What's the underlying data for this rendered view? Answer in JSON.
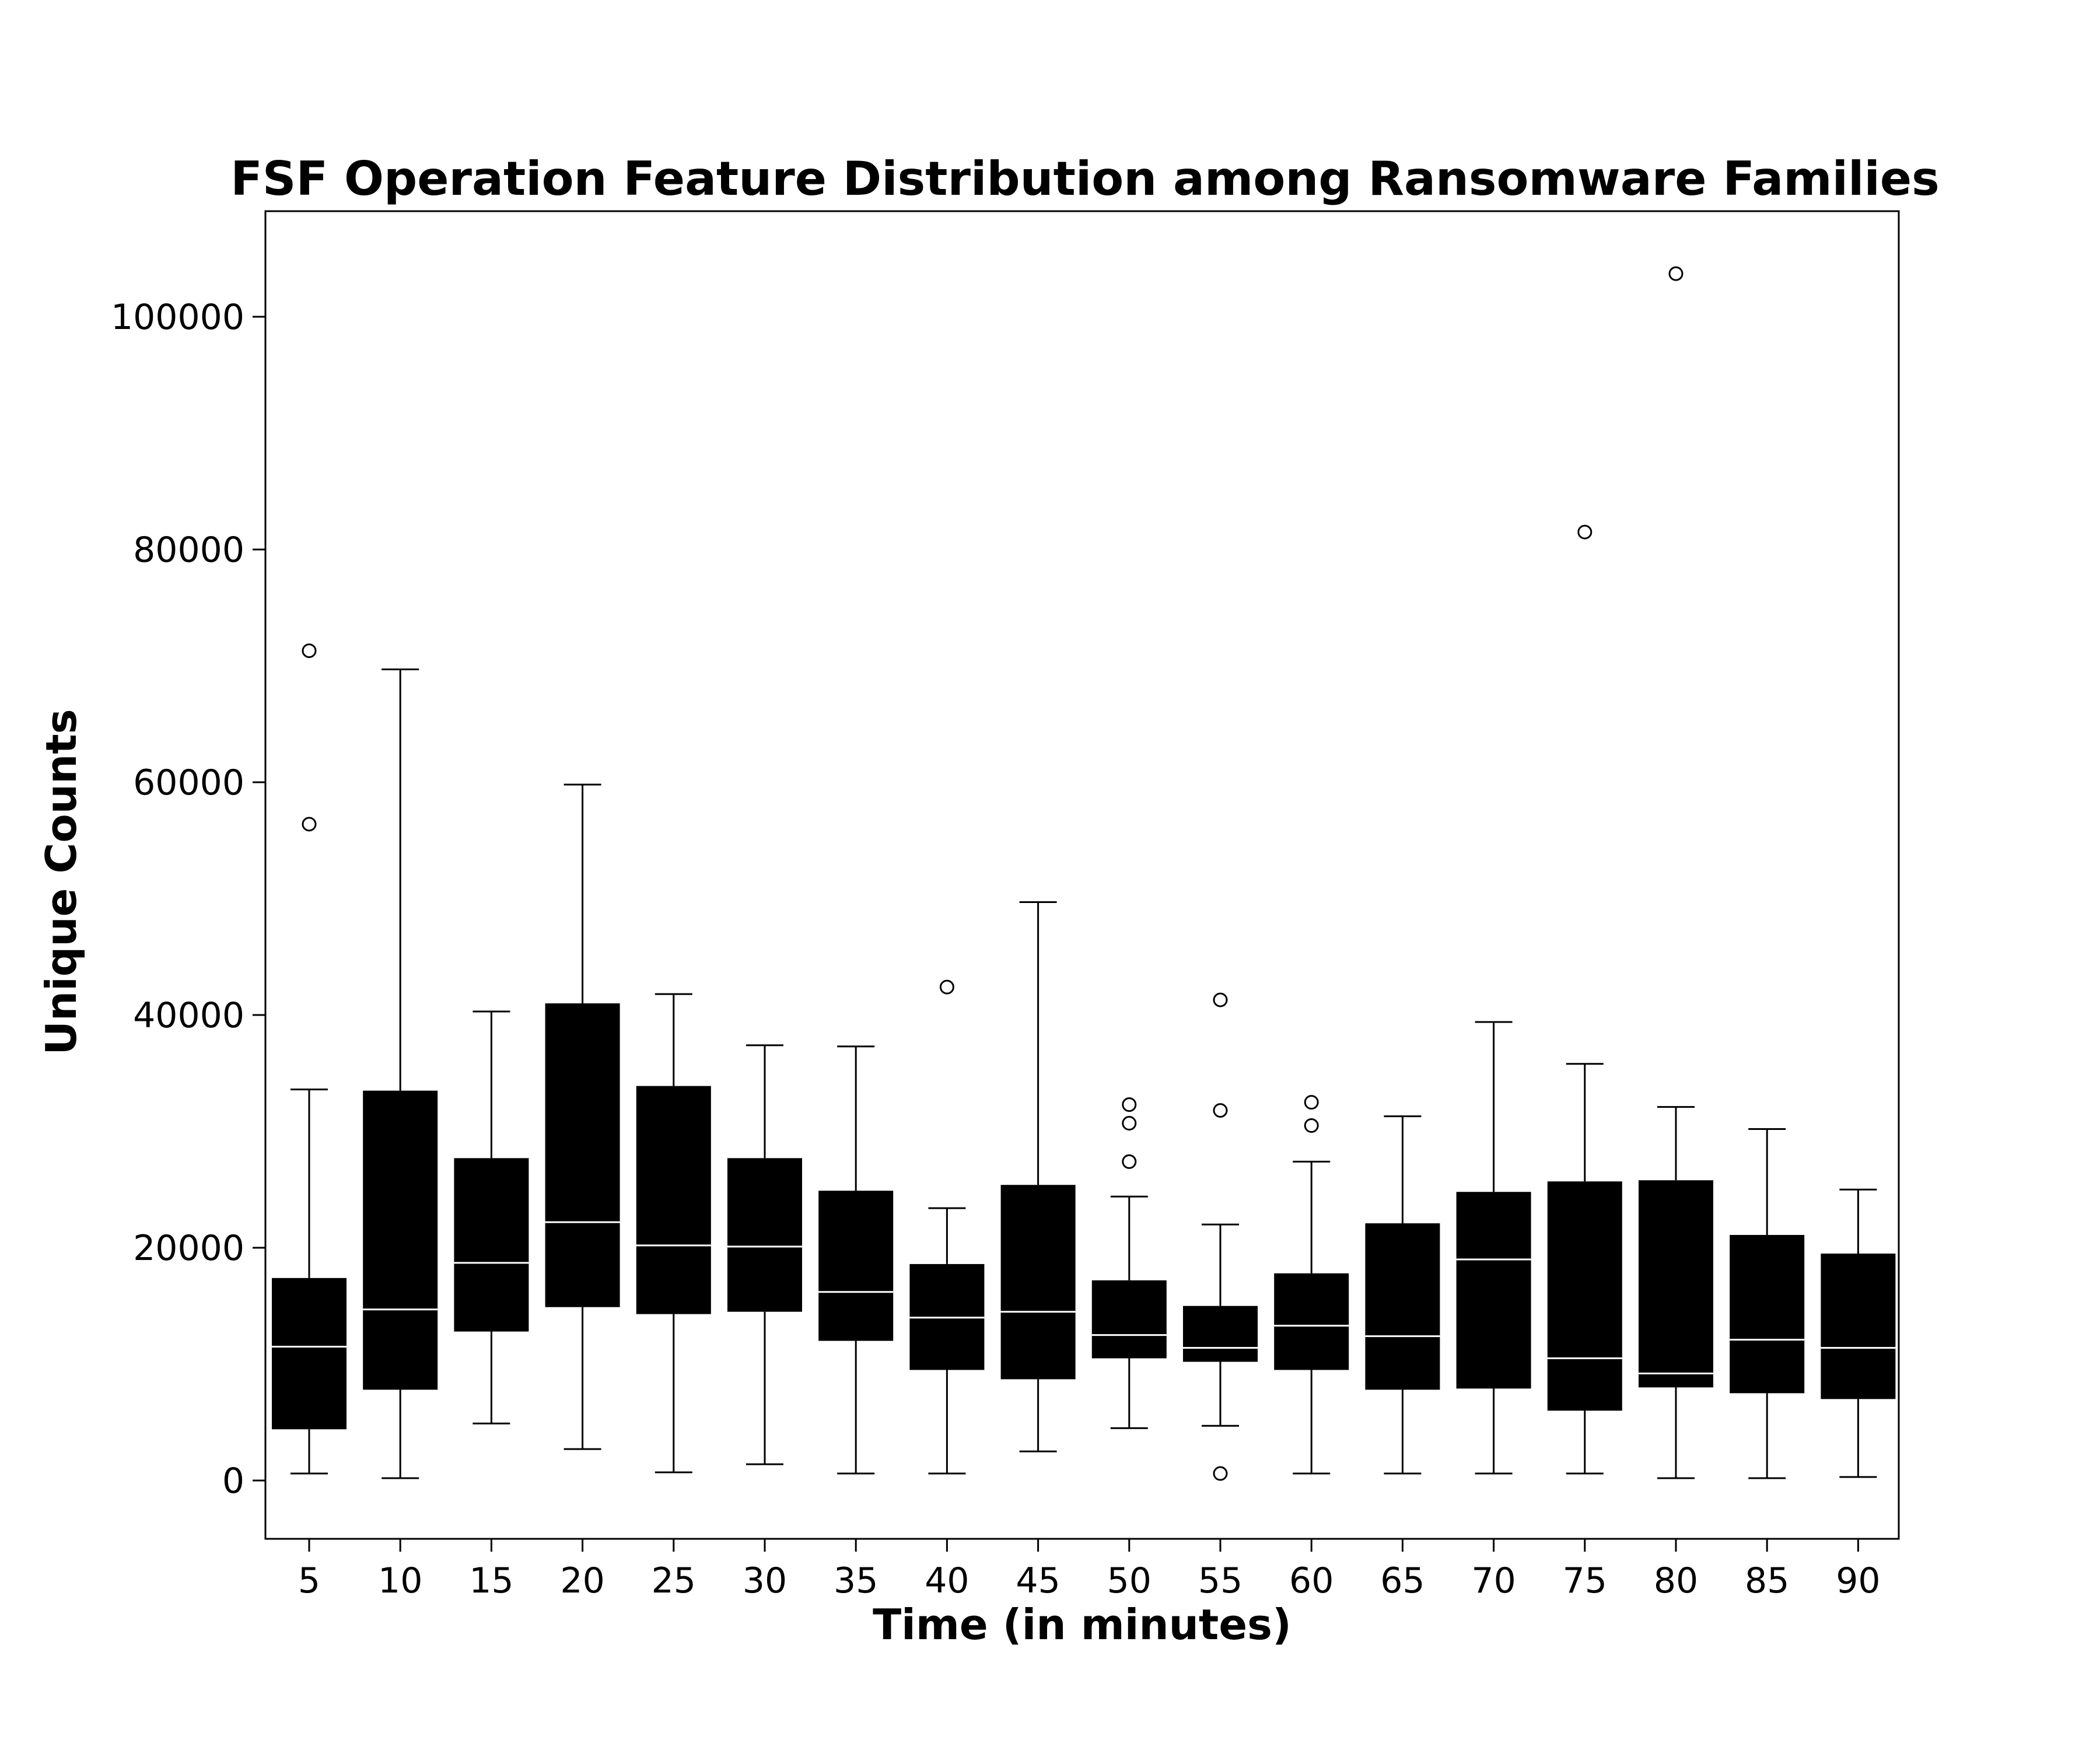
{
  "chart_data": {
    "type": "box",
    "title": "FSF Operation Feature Distribution among Ransomware Families",
    "xlabel": "Time (in minutes)",
    "ylabel": "Unique Counts",
    "ylim": [
      -5000,
      109000
    ],
    "yticks": [
      0,
      20000,
      40000,
      60000,
      80000,
      100000
    ],
    "grid": false,
    "legend": "none",
    "colors": {
      "box_fill": "#000000",
      "median_line": "#ffffff",
      "whisker": "#000000",
      "outlier_edge": "#000000",
      "background": "#ffffff"
    },
    "categories": [
      "5",
      "10",
      "15",
      "20",
      "25",
      "30",
      "35",
      "40",
      "45",
      "50",
      "55",
      "60",
      "65",
      "70",
      "75",
      "80",
      "85",
      "90"
    ],
    "boxes": [
      {
        "category": "5",
        "whisker_low": 600,
        "q1": 4400,
        "median": 11500,
        "q3": 17400,
        "whisker_high": 33600,
        "outliers": [
          56400,
          71300
        ]
      },
      {
        "category": "10",
        "whisker_low": 200,
        "q1": 7800,
        "median": 14700,
        "q3": 33500,
        "whisker_high": 69700,
        "outliers": []
      },
      {
        "category": "15",
        "whisker_low": 4900,
        "q1": 12800,
        "median": 18700,
        "q3": 27700,
        "whisker_high": 40300,
        "outliers": []
      },
      {
        "category": "20",
        "whisker_low": 2700,
        "q1": 14900,
        "median": 22200,
        "q3": 41000,
        "whisker_high": 59800,
        "outliers": []
      },
      {
        "category": "25",
        "whisker_low": 700,
        "q1": 14300,
        "median": 20200,
        "q3": 33900,
        "whisker_high": 41800,
        "outliers": []
      },
      {
        "category": "30",
        "whisker_low": 1400,
        "q1": 14500,
        "median": 20100,
        "q3": 27700,
        "whisker_high": 37400,
        "outliers": []
      },
      {
        "category": "35",
        "whisker_low": 600,
        "q1": 12000,
        "median": 16200,
        "q3": 24900,
        "whisker_high": 37300,
        "outliers": []
      },
      {
        "category": "40",
        "whisker_low": 600,
        "q1": 9500,
        "median": 14000,
        "q3": 18600,
        "whisker_high": 23400,
        "outliers": [
          42400
        ]
      },
      {
        "category": "45",
        "whisker_low": 2500,
        "q1": 8700,
        "median": 14500,
        "q3": 25400,
        "whisker_high": 49700,
        "outliers": []
      },
      {
        "category": "50",
        "whisker_low": 4500,
        "q1": 10500,
        "median": 12500,
        "q3": 17200,
        "whisker_high": 24400,
        "outliers": [
          27400,
          30700,
          32300
        ]
      },
      {
        "category": "55",
        "whisker_low": 4700,
        "q1": 10200,
        "median": 11400,
        "q3": 15000,
        "whisker_high": 22000,
        "outliers": [
          600,
          31800,
          41300
        ]
      },
      {
        "category": "60",
        "whisker_low": 600,
        "q1": 9500,
        "median": 13300,
        "q3": 17800,
        "whisker_high": 27400,
        "outliers": [
          30500,
          32500
        ]
      },
      {
        "category": "65",
        "whisker_low": 600,
        "q1": 7800,
        "median": 12400,
        "q3": 22100,
        "whisker_high": 31300,
        "outliers": []
      },
      {
        "category": "70",
        "whisker_low": 600,
        "q1": 7900,
        "median": 19000,
        "q3": 24800,
        "whisker_high": 39400,
        "outliers": []
      },
      {
        "category": "75",
        "whisker_low": 600,
        "q1": 6000,
        "median": 10500,
        "q3": 25700,
        "whisker_high": 35800,
        "outliers": [
          81500
        ]
      },
      {
        "category": "80",
        "whisker_low": 200,
        "q1": 8000,
        "median": 9200,
        "q3": 25800,
        "whisker_high": 32100,
        "outliers": [
          103700
        ]
      },
      {
        "category": "85",
        "whisker_low": 200,
        "q1": 7500,
        "median": 12100,
        "q3": 21100,
        "whisker_high": 30200,
        "outliers": []
      },
      {
        "category": "90",
        "whisker_low": 300,
        "q1": 7000,
        "median": 11400,
        "q3": 19500,
        "whisker_high": 25000,
        "outliers": []
      }
    ]
  }
}
